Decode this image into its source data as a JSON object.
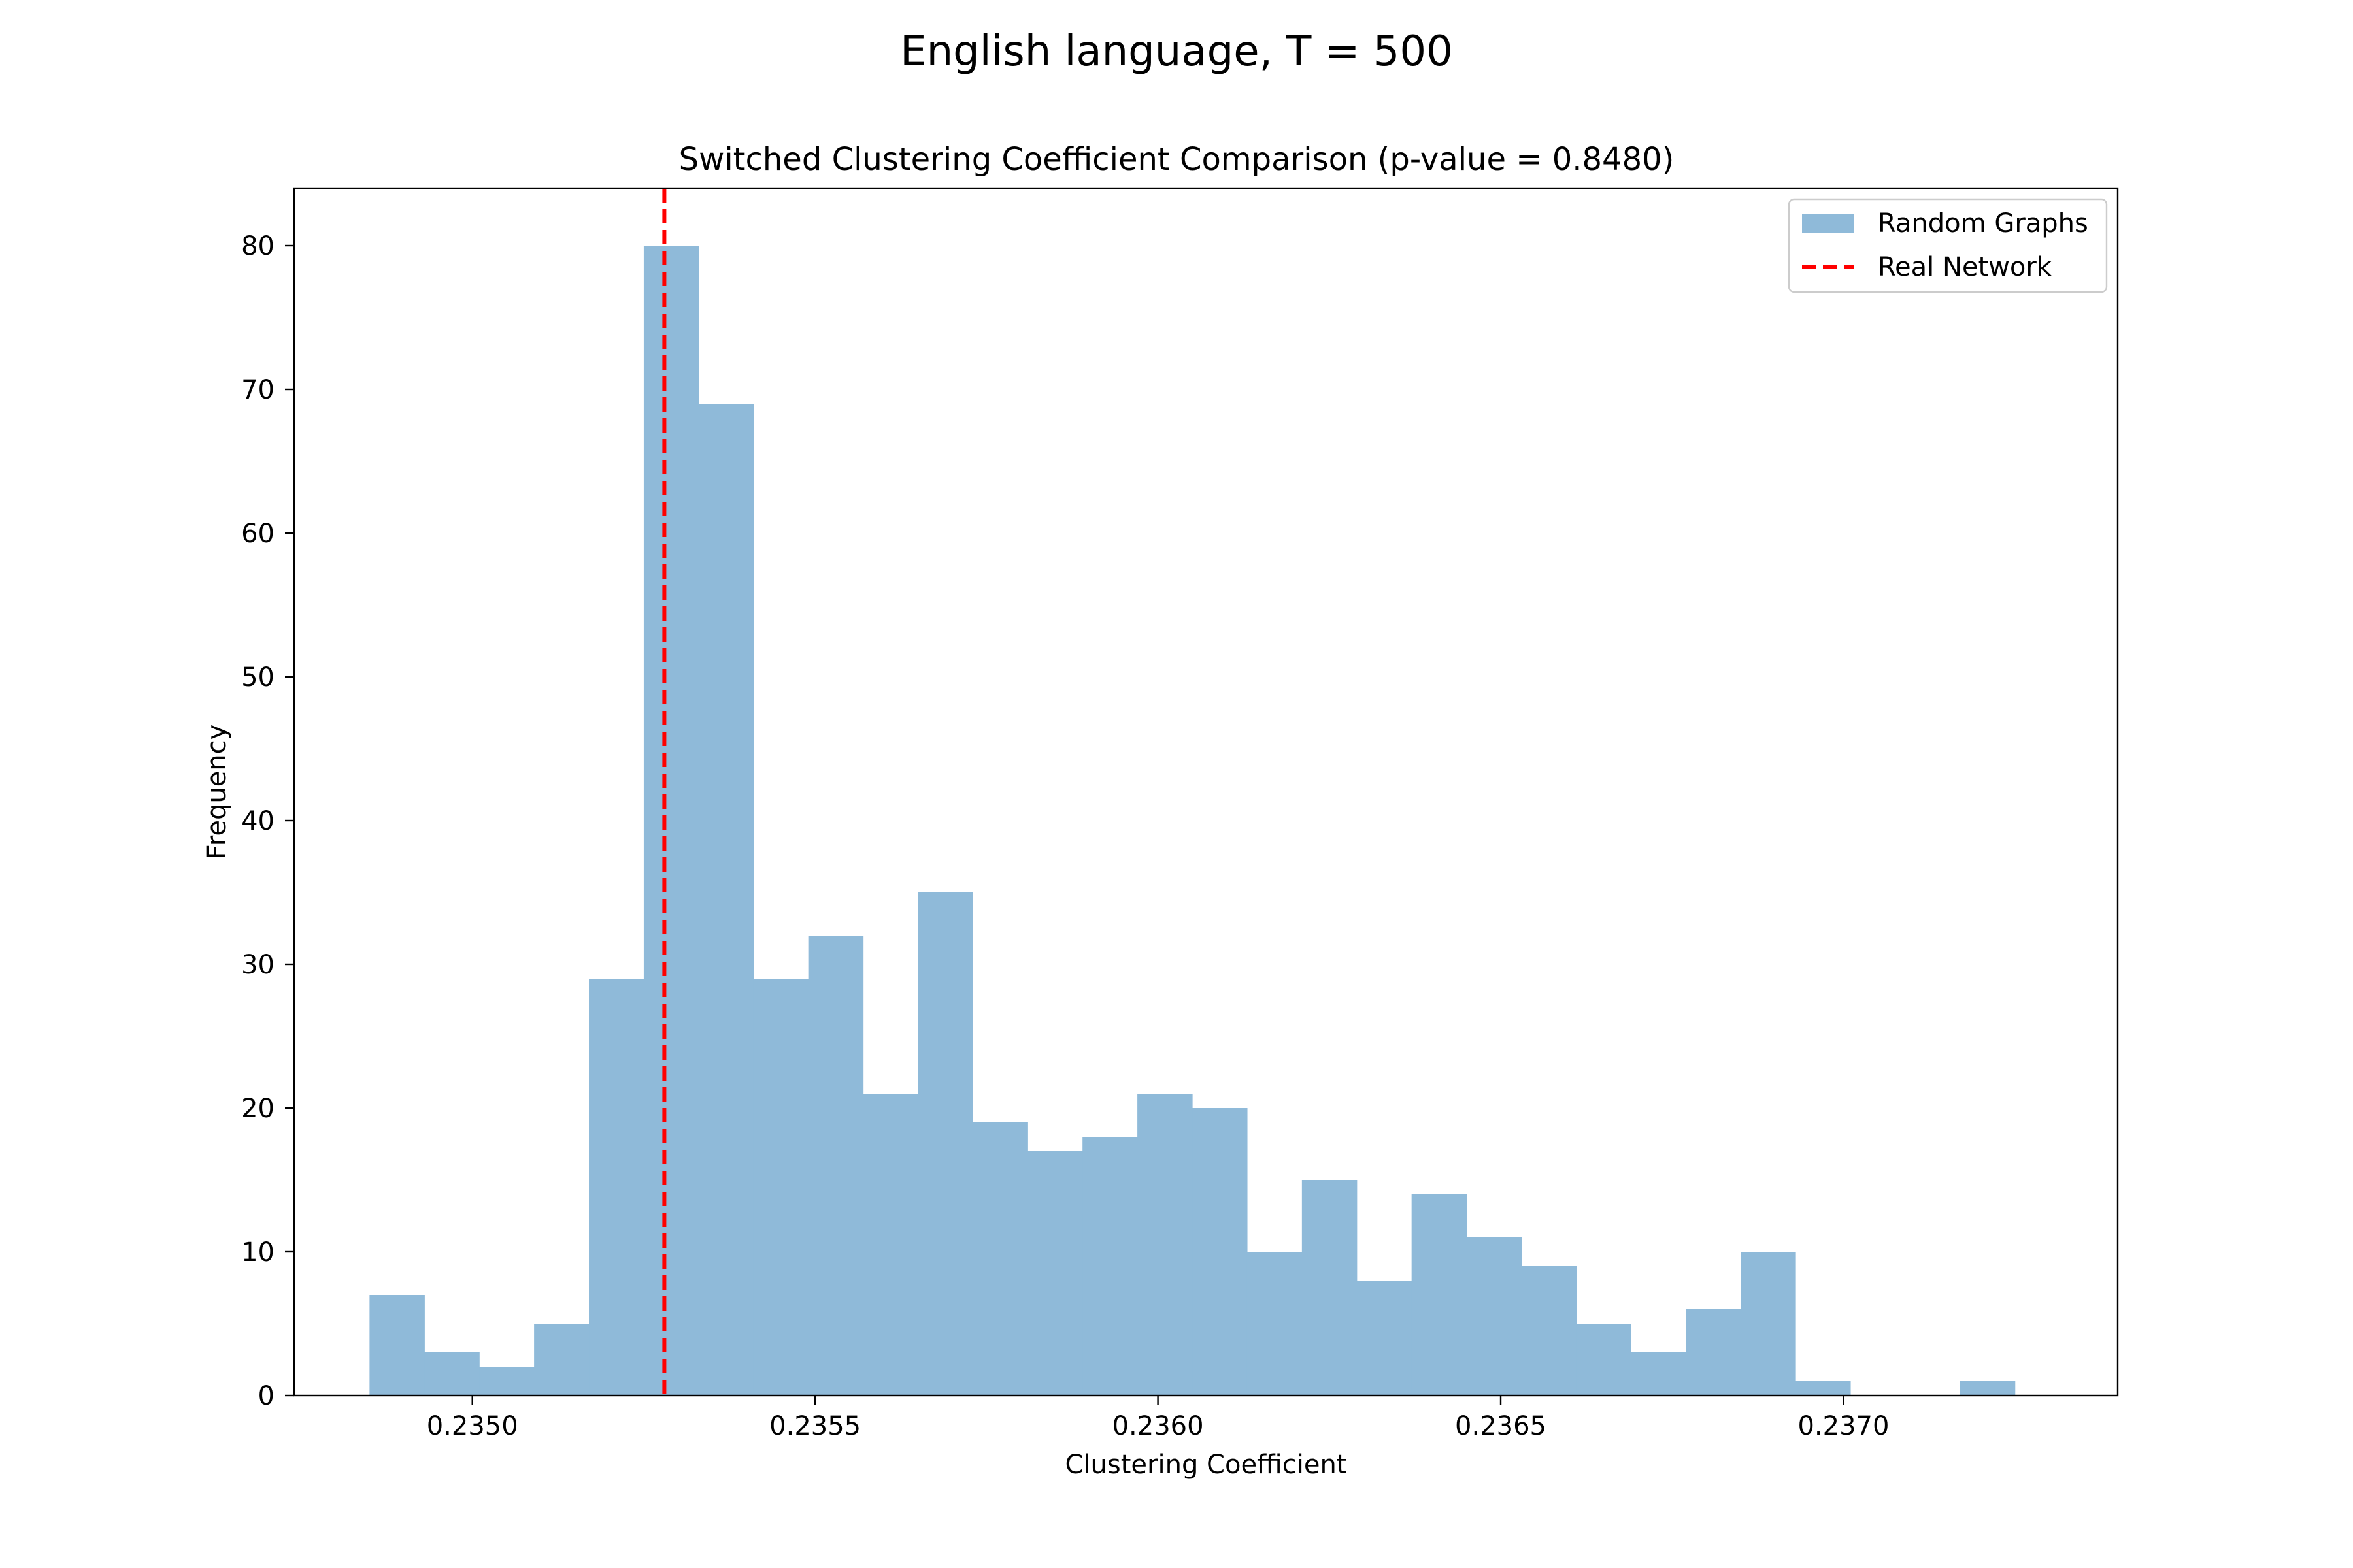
{
  "figure": {
    "suptitle": "English language, T = 500"
  },
  "chart_data": {
    "type": "bar",
    "title": "Switched Clustering Coefficient Comparison (p-value = 0.8480)",
    "xlabel": "Clustering Coefficient",
    "ylabel": "Frequency",
    "xlim": [
      0.23474,
      0.2374
    ],
    "ylim": [
      0,
      84
    ],
    "xticks": [
      0.235,
      0.2355,
      0.236,
      0.2365,
      0.237
    ],
    "xtick_labels": [
      "0.2350",
      "0.2355",
      "0.2360",
      "0.2365",
      "0.2370"
    ],
    "yticks": [
      0,
      10,
      20,
      30,
      40,
      50,
      60,
      70,
      80
    ],
    "ytick_labels": [
      "0",
      "10",
      "20",
      "30",
      "40",
      "50",
      "60",
      "70",
      "80"
    ],
    "grid": false,
    "legend_position": "upper right",
    "series": [
      {
        "name": "Random Graphs",
        "kind": "histogram",
        "color": "#8fbad9",
        "bin_start": 0.23485,
        "bin_width": 8e-05,
        "counts": [
          7,
          3,
          2,
          5,
          29,
          80,
          69,
          29,
          32,
          21,
          35,
          19,
          17,
          18,
          21,
          20,
          10,
          15,
          8,
          14,
          11,
          9,
          5,
          3,
          6,
          10,
          1,
          0,
          0,
          1
        ]
      },
      {
        "name": "Real Network",
        "kind": "vline",
        "color": "#ff0000",
        "x": 0.23528
      }
    ]
  }
}
